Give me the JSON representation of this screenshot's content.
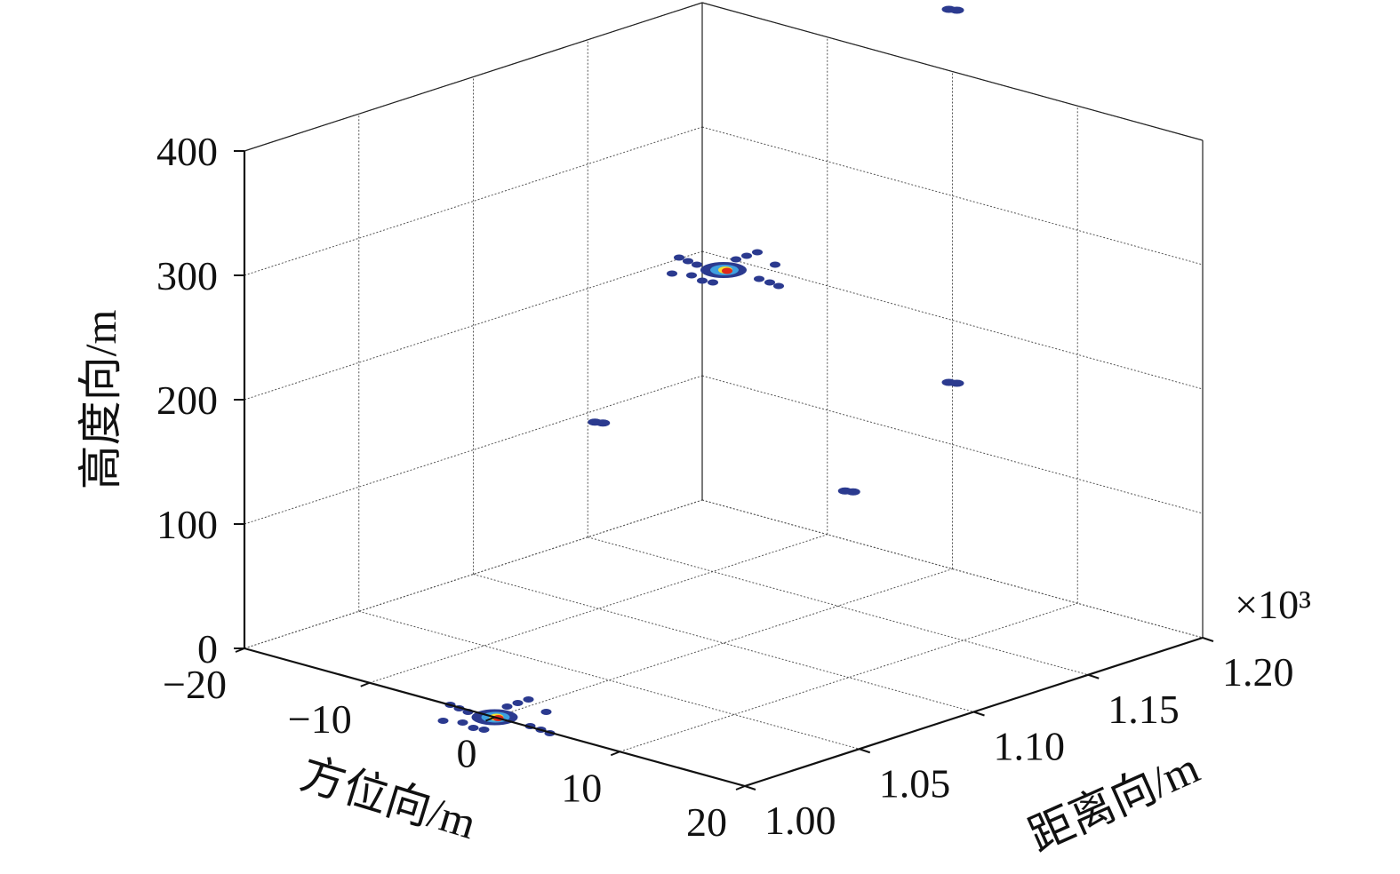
{
  "chart_data": {
    "type": "scatter",
    "projection": "3d",
    "grid": true,
    "axes": {
      "azimuth": {
        "label": "方位向/m",
        "range": [
          -20,
          20
        ],
        "ticks": [
          -20,
          -10,
          0,
          10,
          20
        ],
        "tick_labels": [
          "−20",
          "−10",
          "0",
          "10",
          "20"
        ]
      },
      "range": {
        "label": "距离向/m",
        "range": [
          1.0,
          1.2
        ],
        "ticks": [
          1.0,
          1.05,
          1.1,
          1.15,
          1.2
        ],
        "tick_labels": [
          "1.00",
          "1.05",
          "1.10",
          "1.15",
          "1.20"
        ],
        "exponent_label": "×10³"
      },
      "height": {
        "label": "高度向/m",
        "range": [
          0,
          400
        ],
        "ticks": [
          0,
          100,
          200,
          300,
          400
        ],
        "tick_labels": [
          "0",
          "100",
          "200",
          "300",
          "400"
        ]
      }
    },
    "targets": [
      {
        "azimuth": 0,
        "range": 1.0,
        "height": 0,
        "intensity": "high"
      },
      {
        "azimuth": 0,
        "range": 1.1,
        "height": 300,
        "intensity": "high"
      },
      {
        "azimuth": -10,
        "range": 1.1,
        "height": 150,
        "intensity": "low"
      },
      {
        "azimuth": 10,
        "range": 1.1,
        "height": 150,
        "intensity": "low"
      },
      {
        "azimuth": 0,
        "range": 1.2,
        "height": 150,
        "intensity": "low"
      },
      {
        "azimuth": 0,
        "range": 1.2,
        "height": 450,
        "intensity": "low"
      }
    ],
    "colors": {
      "low": "#2b3a8f",
      "mid": "#3fa0e0",
      "peak_a": "#f5e030",
      "peak_b": "#e02a1a"
    }
  }
}
